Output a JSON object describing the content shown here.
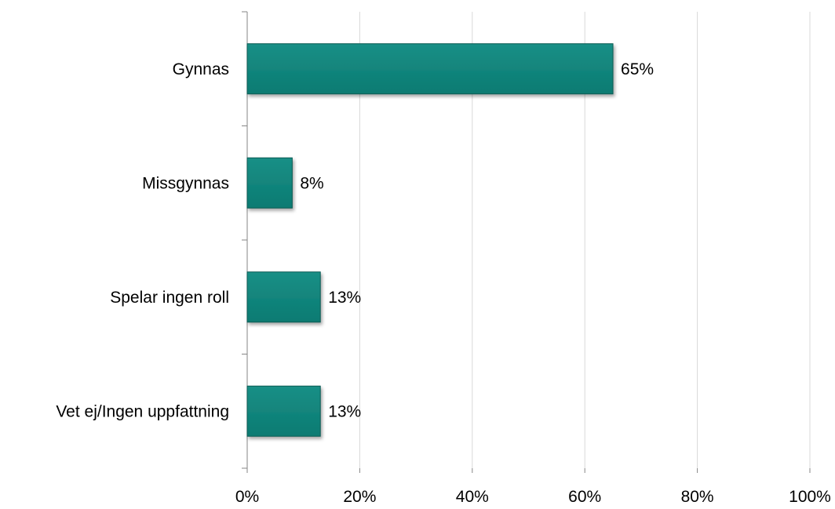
{
  "chart_data": {
    "type": "bar",
    "orientation": "horizontal",
    "title": "",
    "xlabel": "",
    "ylabel": "",
    "categories": [
      "Gynnas",
      "Missgynnas",
      "Spelar ingen roll",
      "Vet ej/Ingen uppfattning"
    ],
    "values": [
      65,
      8,
      13,
      13
    ],
    "data_labels": [
      "65%",
      "8%",
      "13%",
      "13%"
    ],
    "xlim": [
      0,
      100
    ],
    "x_ticks": [
      0,
      20,
      40,
      60,
      80,
      100
    ],
    "x_tick_labels": [
      "0%",
      "20%",
      "40%",
      "60%",
      "80%",
      "100%"
    ],
    "grid": true,
    "legend": "none",
    "bar_color": "#0a7b72",
    "bar_edge_color": "#075a53"
  }
}
